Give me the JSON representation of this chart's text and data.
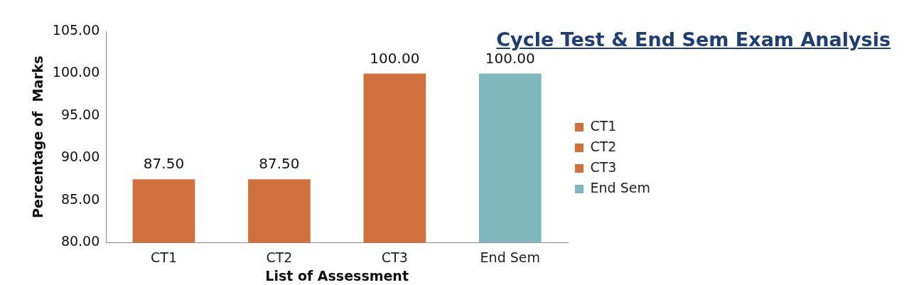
{
  "chart_data": {
    "type": "bar",
    "title": "Cycle Test & End Sem Exam Analysis",
    "xlabel": "List of Assessment",
    "ylabel": "Percentage of  Marks",
    "categories": [
      "CT1",
      "CT2",
      "CT3",
      "End Sem"
    ],
    "series": [
      {
        "name": "CT1",
        "color": "#d0703f",
        "values": [
          87.5,
          null,
          null,
          null
        ],
        "value_labels": [
          "87.50",
          null,
          null,
          null
        ]
      },
      {
        "name": "CT2",
        "color": "#d0703f",
        "values": [
          null,
          87.5,
          null,
          null
        ],
        "value_labels": [
          null,
          "87.50",
          null,
          null
        ]
      },
      {
        "name": "CT3",
        "color": "#d0703f",
        "values": [
          null,
          null,
          100,
          null
        ],
        "value_labels": [
          null,
          null,
          "100.00",
          null
        ]
      },
      {
        "name": "End Sem",
        "color": "#7fb7bd",
        "values": [
          null,
          null,
          null,
          100
        ],
        "value_labels": [
          null,
          null,
          null,
          "100.00"
        ]
      }
    ],
    "ylim": [
      80,
      105
    ],
    "yticks": [
      {
        "value": 80,
        "label": "80.00"
      },
      {
        "value": 85,
        "label": "85.00"
      },
      {
        "value": 90,
        "label": "90.00"
      },
      {
        "value": 95,
        "label": "95.00"
      },
      {
        "value": 100,
        "label": "100.00"
      },
      {
        "value": 105,
        "label": "105.00"
      }
    ],
    "grid": false,
    "legend": "right"
  }
}
